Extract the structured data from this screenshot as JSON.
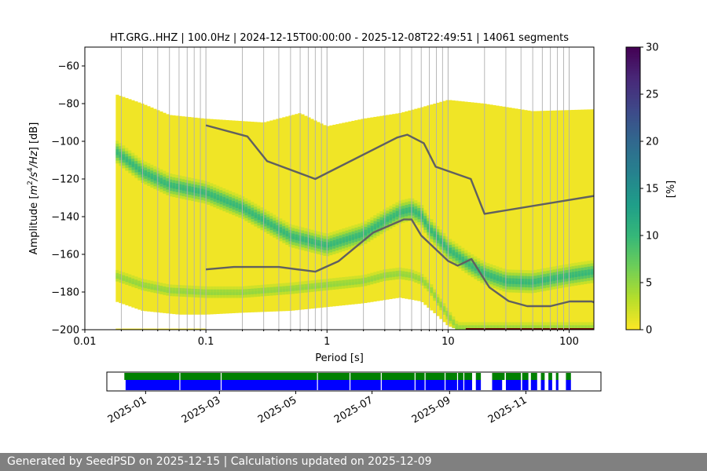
{
  "chart_data": [
    {
      "type": "heatmap",
      "title": "HT.GRG..HHZ | 100.0Hz | 2024-12-15T00:00:00 - 2025-12-08T22:49:51 | 14061 segments",
      "xlabel": "Period [s]",
      "ylabel_parts": [
        "Amplitude [",
        "m",
        "2",
        "/s",
        "4",
        "/Hz",
        "] [dB]"
      ],
      "x_scale": "log",
      "xlim": [
        0.01,
        160
      ],
      "ylim": [
        -200,
        -50
      ],
      "x_tick_values": [
        0.01,
        0.1,
        1,
        10,
        100
      ],
      "x_tick_labels": [
        "0.01",
        "0.1",
        "1",
        "10",
        "100"
      ],
      "y_tick_values": [
        -60,
        -80,
        -100,
        -120,
        -140,
        -160,
        -180,
        -200
      ],
      "y_tick_labels": [
        "−60",
        "−80",
        "−100",
        "−120",
        "−140",
        "−160",
        "−180",
        "−200"
      ],
      "grid": "vertical minor and major decade lines",
      "colorbar": {
        "label": "[%]",
        "range": [
          0,
          30
        ],
        "tick_values": [
          0,
          5,
          10,
          15,
          20,
          25,
          30
        ],
        "tick_labels": [
          "0",
          "5",
          "10",
          "15",
          "20",
          "25",
          "30"
        ],
        "colormap": "viridis_r"
      },
      "colors": {
        "cmap_stops": [
          "#fde725",
          "#b5de2b",
          "#6ece58",
          "#35b779",
          "#1f9e89",
          "#26828e",
          "#31688e",
          "#3e4989",
          "#482878",
          "#440154"
        ],
        "noise_model_line": "#606060"
      },
      "noise_models": [
        {
          "name": "upper",
          "period": [
            0.1,
            0.22,
            0.32,
            0.8,
            3.8,
            4.6,
            6.3,
            7.9,
            15.4,
            20,
            160
          ],
          "db": [
            -91.5,
            -97.4,
            -110.5,
            -120,
            -98,
            -96.5,
            -101,
            -113.5,
            -120,
            -138.5,
            -129
          ]
        },
        {
          "name": "lower",
          "period": [
            0.1,
            0.17,
            0.4,
            0.8,
            1.24,
            2.4,
            4.3,
            5,
            6,
            10,
            12,
            15.6,
            21.9,
            31.6,
            45,
            70,
            101,
            154,
            160
          ],
          "db": [
            -168,
            -166.7,
            -166.7,
            -169.2,
            -163.7,
            -148.5,
            -141.5,
            -141.5,
            -150,
            -163.5,
            -166,
            -162.5,
            -177.5,
            -184.8,
            -187.5,
            -187.5,
            -185,
            -185,
            -185.5
          ]
        }
      ],
      "density_bands": [
        {
          "name": "upper mode",
          "period": [
            0.018,
            0.03,
            0.05,
            0.1,
            0.2,
            0.5,
            1,
            2,
            3,
            4,
            5,
            6,
            7,
            10,
            15,
            20,
            30,
            50,
            100,
            160
          ],
          "db": [
            -106,
            -117,
            -124,
            -128,
            -136,
            -151,
            -156,
            -150,
            -143,
            -138.5,
            -137,
            -140,
            -147,
            -158,
            -166,
            -171,
            -175,
            -175.5,
            -172,
            -170
          ],
          "peak_percent": 10
        },
        {
          "name": "lower mode",
          "period": [
            0.018,
            0.03,
            0.05,
            0.1,
            0.2,
            0.5,
            1,
            2,
            3,
            4,
            5,
            6,
            7,
            8,
            10,
            12
          ],
          "db": [
            -172,
            -177,
            -180,
            -181,
            -181,
            -179,
            -177,
            -175,
            -172,
            -171,
            -172,
            -174,
            -178,
            -184,
            -193,
            -200
          ],
          "peak_percent": 5
        }
      ]
    },
    {
      "type": "timeline",
      "x_tick_labels": [
        "2025-01",
        "2025-03",
        "2025-05",
        "2025-07",
        "2025-09",
        "2025-11"
      ],
      "x_tick_dates": [
        "2025-01-01",
        "2025-03-01",
        "2025-05-01",
        "2025-07-01",
        "2025-09-01",
        "2025-11-01"
      ],
      "date_range": [
        "2024-12-01",
        "2025-12-31"
      ],
      "series": [
        {
          "name": "data availability",
          "color": "#008000",
          "intervals": [
            [
              "2024-12-15",
              "2025-09-19"
            ],
            [
              "2025-09-22",
              "2025-09-26"
            ],
            [
              "2025-10-05",
              "2025-10-15"
            ],
            [
              "2025-10-16",
              "2025-10-28"
            ],
            [
              "2025-10-29",
              "2025-11-03"
            ],
            [
              "2025-11-05",
              "2025-11-10"
            ],
            [
              "2025-11-13",
              "2025-11-16"
            ],
            [
              "2025-11-19",
              "2025-11-22"
            ],
            [
              "2025-11-25",
              "2025-11-27"
            ],
            [
              "2025-12-03",
              "2025-12-07"
            ]
          ]
        },
        {
          "name": "PSD segments",
          "color": "#0000ff",
          "intervals": [
            [
              "2024-12-16",
              "2025-09-19"
            ],
            [
              "2025-09-22",
              "2025-09-26"
            ],
            [
              "2025-10-05",
              "2025-10-13"
            ],
            [
              "2025-10-16",
              "2025-10-28"
            ],
            [
              "2025-10-29",
              "2025-11-03"
            ],
            [
              "2025-11-05",
              "2025-11-10"
            ],
            [
              "2025-11-13",
              "2025-11-16"
            ],
            [
              "2025-11-19",
              "2025-11-22"
            ],
            [
              "2025-11-25",
              "2025-11-27"
            ],
            [
              "2025-12-03",
              "2025-12-07"
            ]
          ]
        }
      ]
    }
  ],
  "footer": {
    "text": "Generated by SeedPSD on 2025-12-15 | Calculations updated on 2025-12-09"
  }
}
